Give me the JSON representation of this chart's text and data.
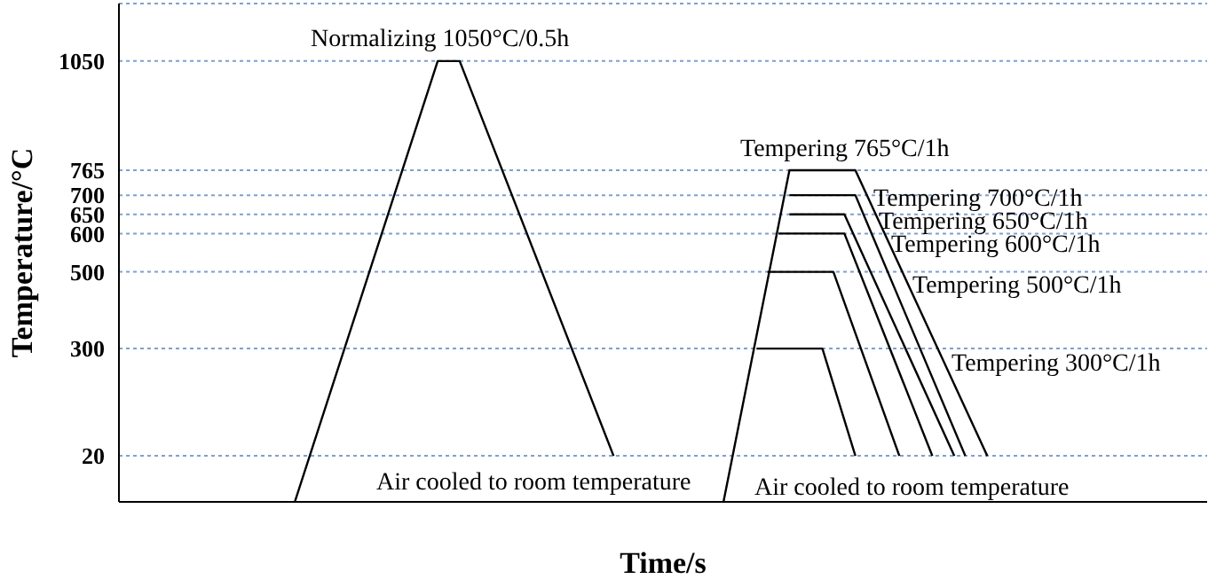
{
  "chart_data": {
    "type": "line",
    "xlabel": "Time/s",
    "ylabel": "Temperature/°C",
    "categories": [
      null,
      null,
      null,
      null,
      null,
      null,
      null,
      null,
      null,
      null,
      null,
      null,
      null,
      null,
      null,
      null,
      null,
      null,
      null,
      null,
      null,
      null,
      null,
      null,
      null,
      null,
      null,
      null,
      null,
      null,
      null,
      null,
      null,
      null,
      null,
      null,
      null,
      null,
      null,
      null,
      null,
      null,
      null,
      null,
      null,
      null,
      null,
      null,
      null,
      null,
      null,
      null,
      null,
      null,
      null,
      null,
      null,
      null,
      null,
      null,
      null,
      null,
      null,
      null,
      null,
      null,
      null,
      null,
      null,
      null,
      null,
      null,
      null,
      null,
      null,
      null,
      null,
      null,
      null,
      null,
      null,
      null,
      null,
      null,
      null,
      null,
      null,
      null,
      null,
      null,
      null,
      null,
      null,
      null,
      null,
      null,
      null,
      null,
      null,
      null
    ],
    "ylim": [
      -100,
      1200
    ],
    "yticks": [
      20,
      300,
      500,
      600,
      650,
      700,
      765,
      1050
    ],
    "grid": "y",
    "legend": false,
    "marker": "none",
    "line_style": "solid",
    "series": [
      {
        "color": "#000000",
        "values": [
          null,
          null,
          null,
          null,
          null,
          null,
          null,
          null,
          null,
          null,
          null,
          null,
          null,
          null,
          null,
          null,
          -100,
          null,
          null,
          null,
          null,
          null,
          null,
          null,
          null,
          null,
          null,
          null,
          null,
          1050,
          null,
          1050,
          null,
          null,
          null,
          null,
          null,
          null,
          null,
          null,
          null,
          null,
          null,
          null,
          null,
          20,
          null,
          null,
          null,
          null,
          null,
          null,
          null,
          null,
          null,
          null,
          null,
          null,
          null,
          null,
          null,
          null,
          null,
          null,
          null,
          null,
          null,
          null,
          null,
          null,
          null,
          null,
          null,
          null,
          null,
          null,
          null,
          null,
          null,
          null,
          null,
          null,
          null,
          null,
          null,
          null,
          null,
          null,
          null,
          null,
          null,
          null,
          null,
          null,
          null,
          null,
          null,
          null,
          null,
          null
        ]
      },
      {
        "color": "#000000",
        "values": [
          null,
          null,
          null,
          null,
          null,
          null,
          null,
          null,
          null,
          null,
          null,
          null,
          null,
          null,
          null,
          null,
          null,
          null,
          null,
          null,
          null,
          null,
          null,
          null,
          null,
          null,
          null,
          null,
          null,
          null,
          null,
          null,
          null,
          null,
          null,
          null,
          null,
          null,
          null,
          null,
          null,
          null,
          null,
          null,
          null,
          null,
          null,
          null,
          null,
          null,
          null,
          null,
          null,
          null,
          null,
          -100,
          null,
          null,
          null,
          null,
          null,
          765,
          null,
          null,
          null,
          null,
          null,
          765,
          null,
          null,
          null,
          null,
          null,
          null,
          null,
          null,
          null,
          null,
          null,
          20,
          null,
          null,
          null,
          null,
          null,
          null,
          null,
          null,
          null,
          null,
          null,
          null,
          null,
          null,
          null,
          null,
          null,
          null,
          null,
          null
        ]
      },
      {
        "color": "#000000",
        "values": [
          null,
          null,
          null,
          null,
          null,
          null,
          null,
          null,
          null,
          null,
          null,
          null,
          null,
          null,
          null,
          null,
          null,
          null,
          null,
          null,
          null,
          null,
          null,
          null,
          null,
          null,
          null,
          null,
          null,
          null,
          null,
          null,
          null,
          null,
          null,
          null,
          null,
          null,
          null,
          null,
          null,
          null,
          null,
          null,
          null,
          null,
          null,
          null,
          null,
          null,
          null,
          null,
          null,
          null,
          null,
          null,
          null,
          null,
          null,
          null,
          null,
          700,
          null,
          null,
          null,
          null,
          null,
          700,
          null,
          null,
          null,
          null,
          null,
          null,
          null,
          null,
          null,
          20,
          null,
          null,
          null,
          null,
          null,
          null,
          null,
          null,
          null,
          null,
          null,
          null,
          null,
          null,
          null,
          null,
          null,
          null,
          null,
          null,
          null,
          null
        ]
      },
      {
        "color": "#000000",
        "values": [
          null,
          null,
          null,
          null,
          null,
          null,
          null,
          null,
          null,
          null,
          null,
          null,
          null,
          null,
          null,
          null,
          null,
          null,
          null,
          null,
          null,
          null,
          null,
          null,
          null,
          null,
          null,
          null,
          null,
          null,
          null,
          null,
          null,
          null,
          null,
          null,
          null,
          null,
          null,
          null,
          null,
          null,
          null,
          null,
          null,
          null,
          null,
          null,
          null,
          null,
          null,
          null,
          null,
          null,
          null,
          null,
          null,
          null,
          null,
          null,
          null,
          650,
          null,
          null,
          null,
          null,
          650,
          null,
          null,
          null,
          null,
          null,
          null,
          null,
          null,
          null,
          20,
          null,
          null,
          null,
          null,
          null,
          null,
          null,
          null,
          null,
          null,
          null,
          null,
          null,
          null,
          null,
          null,
          null,
          null,
          null,
          null,
          null,
          null,
          null
        ]
      },
      {
        "color": "#000000",
        "values": [
          null,
          null,
          null,
          null,
          null,
          null,
          null,
          null,
          null,
          null,
          null,
          null,
          null,
          null,
          null,
          null,
          null,
          null,
          null,
          null,
          null,
          null,
          null,
          null,
          null,
          null,
          null,
          null,
          null,
          null,
          null,
          null,
          null,
          null,
          null,
          null,
          null,
          null,
          null,
          null,
          null,
          null,
          null,
          null,
          null,
          null,
          null,
          null,
          null,
          null,
          null,
          null,
          null,
          null,
          null,
          null,
          null,
          null,
          null,
          null,
          600,
          null,
          null,
          null,
          null,
          null,
          600,
          null,
          null,
          null,
          null,
          null,
          null,
          null,
          20,
          null,
          null,
          null,
          null,
          null,
          null,
          null,
          null,
          null,
          null,
          null,
          null,
          null,
          null,
          null,
          null,
          null,
          null,
          null,
          null,
          null,
          null,
          null,
          null,
          null
        ]
      },
      {
        "color": "#000000",
        "values": [
          null,
          null,
          null,
          null,
          null,
          null,
          null,
          null,
          null,
          null,
          null,
          null,
          null,
          null,
          null,
          null,
          null,
          null,
          null,
          null,
          null,
          null,
          null,
          null,
          null,
          null,
          null,
          null,
          null,
          null,
          null,
          null,
          null,
          null,
          null,
          null,
          null,
          null,
          null,
          null,
          null,
          null,
          null,
          null,
          null,
          null,
          null,
          null,
          null,
          null,
          null,
          null,
          null,
          null,
          null,
          null,
          null,
          null,
          null,
          500,
          null,
          null,
          null,
          null,
          null,
          500,
          null,
          null,
          null,
          null,
          null,
          20,
          null,
          null,
          null,
          null,
          null,
          null,
          null,
          null,
          null,
          null,
          null,
          null,
          null,
          null,
          null,
          null,
          null,
          null,
          null,
          null,
          null,
          null,
          null,
          null,
          null,
          null,
          null,
          null
        ]
      },
      {
        "color": "#000000",
        "values": [
          null,
          null,
          null,
          null,
          null,
          null,
          null,
          null,
          null,
          null,
          null,
          null,
          null,
          null,
          null,
          null,
          null,
          null,
          null,
          null,
          null,
          null,
          null,
          null,
          null,
          null,
          null,
          null,
          null,
          null,
          null,
          null,
          null,
          null,
          null,
          null,
          null,
          null,
          null,
          null,
          null,
          null,
          null,
          null,
          null,
          null,
          null,
          null,
          null,
          null,
          null,
          null,
          null,
          null,
          null,
          null,
          null,
          null,
          300,
          null,
          null,
          null,
          null,
          null,
          300,
          null,
          null,
          20,
          null,
          null,
          null,
          null,
          null,
          null,
          null,
          null,
          null,
          null,
          null,
          null,
          null,
          null,
          null,
          null,
          null,
          null,
          null,
          null,
          null,
          null,
          null,
          null,
          null,
          null,
          null,
          null,
          null,
          null,
          null,
          null
        ]
      }
    ],
    "annotations": [
      "Normalizing 1050°C/0.5h",
      "Tempering  765°C/1h",
      "Tempering  700°C/1h",
      "Tempering  650°C/1h",
      "Tempering  600°C/1h",
      "Tempering  500°C/1h",
      "Tempering  300°C/1h",
      "Air cooled to room temperature",
      "Air cooled to room temperature"
    ]
  }
}
